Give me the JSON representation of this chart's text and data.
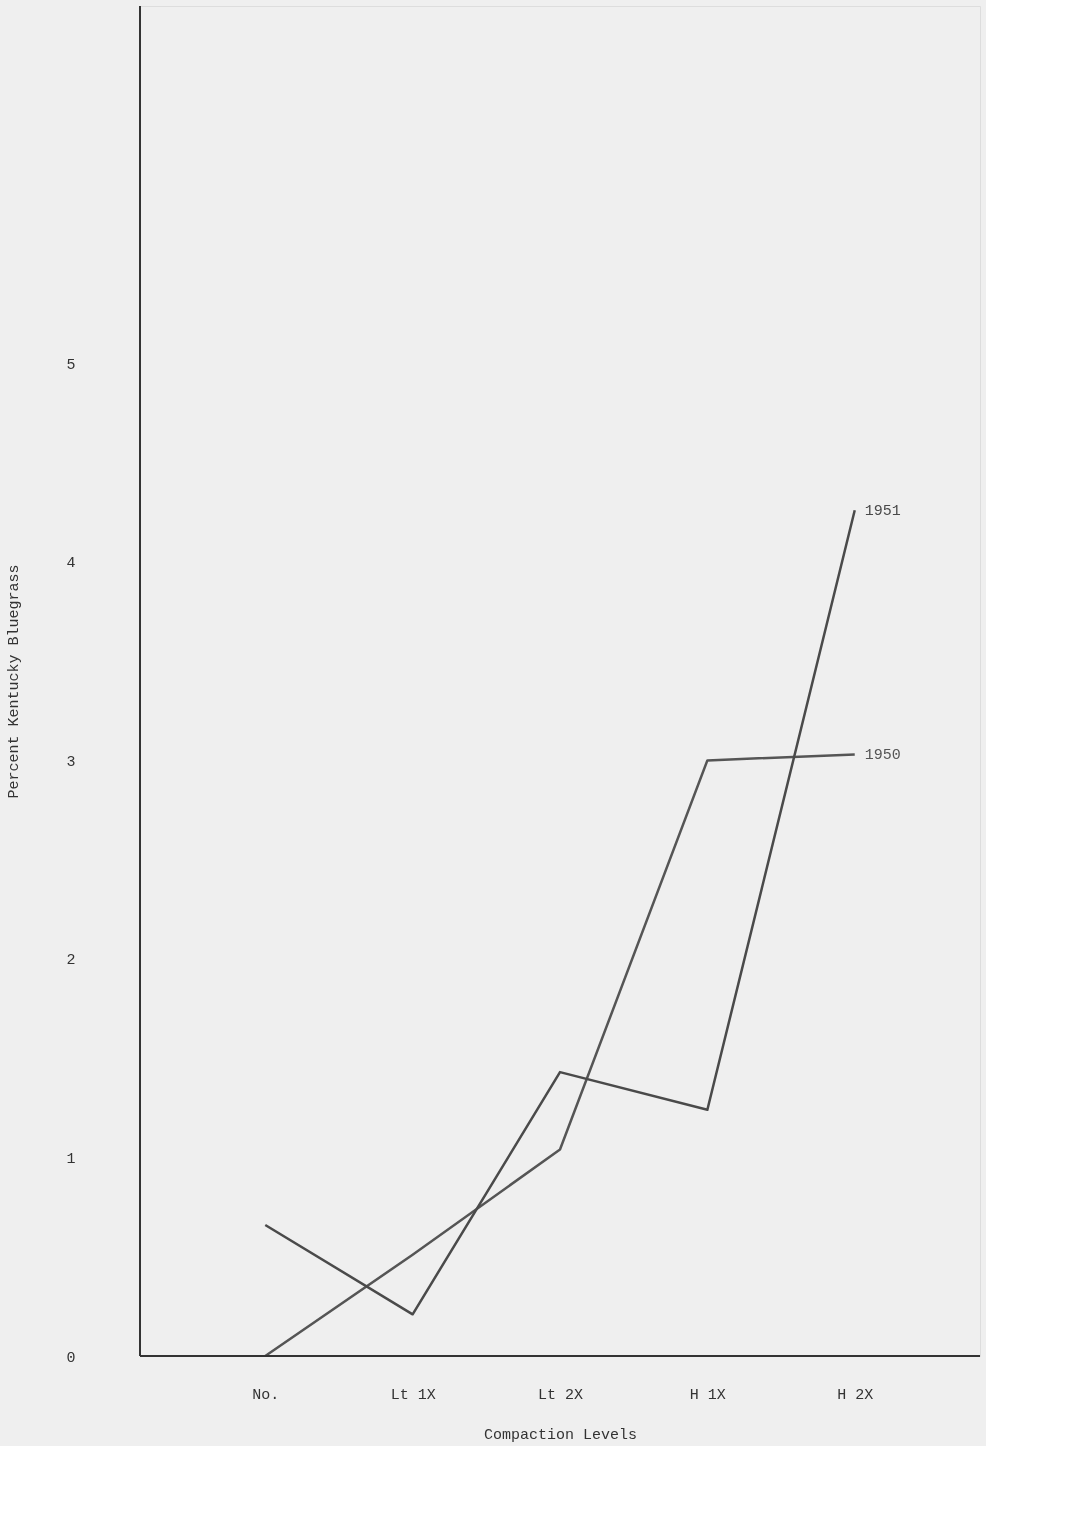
{
  "chart_data": {
    "type": "line",
    "xlabel": "Compaction Levels",
    "ylabel": "Percent Kentucky Bluegrass",
    "categories": [
      "No.",
      "Lt 1X",
      "Lt 2X",
      "H 1X",
      "H 2X"
    ],
    "series": [
      {
        "name": "1950",
        "color": "#555555",
        "values": [
          0,
          0.51,
          1.04,
          3.0,
          3.03
        ]
      },
      {
        "name": "1951",
        "color": "#4a4a4a",
        "values": [
          0.66,
          0.21,
          1.43,
          1.24,
          4.26
        ]
      }
    ],
    "ylim": [
      0,
      6.8
    ],
    "yticks": [
      0,
      1,
      2,
      3,
      4,
      5
    ],
    "grid": false,
    "legend": false,
    "marker": "none",
    "line_style": "solid"
  }
}
